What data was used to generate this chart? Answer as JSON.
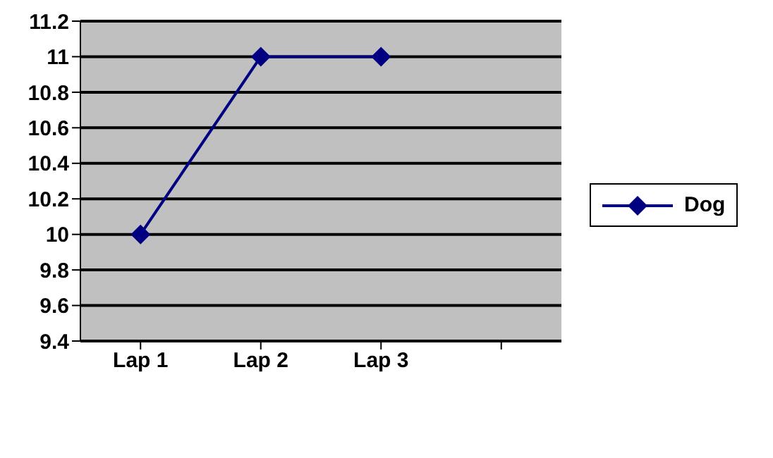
{
  "chart_data": {
    "type": "line",
    "categories": [
      "Lap 1",
      "Lap 2",
      "Lap 3",
      null
    ],
    "series": [
      {
        "name": "Dog",
        "color": "#000080",
        "values": [
          10,
          11,
          11,
          null
        ]
      }
    ],
    "ylim": [
      9.4,
      11.2
    ],
    "yticks": [
      9.4,
      9.6,
      9.8,
      10,
      10.2,
      10.4,
      10.6,
      10.8,
      11,
      11.2
    ],
    "grid": "y",
    "legend": "right",
    "marker": "diamond",
    "line_style": "solid"
  }
}
